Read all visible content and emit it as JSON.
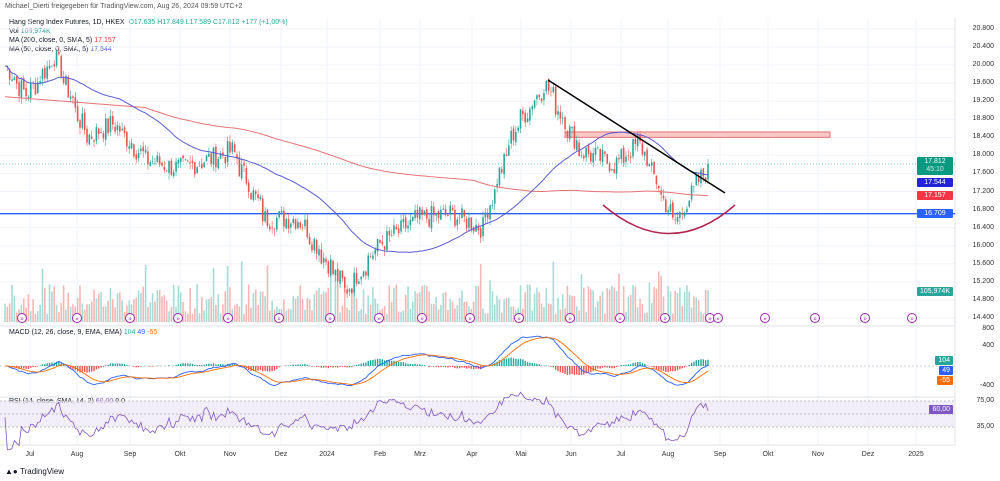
{
  "header": {
    "shared_by": "Michael_Dierti freigegeben für TradingView.com, Aug 26, 2024 09:59 UTC+2"
  },
  "legend": {
    "symbol": "Hang Seng Index Futures, 1D, HKEX",
    "open": "O17.635",
    "high": "H17.849",
    "low": "L17.589",
    "close": "C17.812",
    "change": "+177 (+1,00%)",
    "vol_label": "Vol",
    "vol_value": "105,974K",
    "ma200_label": "MA (200, close, 0, SMA, 5)",
    "ma200_value": "17.157",
    "ma50_label": "MA (50, close, 0, SMA, 5)",
    "ma50_value": "17.544",
    "macd_label": "MACD (12, 26, close, 9, EMA, EMA)",
    "macd_hist": "104",
    "macd_line": "49",
    "macd_signal": "-55",
    "rsi_label": "RSI (14, close, SMA, 14, 2)",
    "rsi_value": "60,00",
    "rsi_extra": "0  0"
  },
  "price_labels": {
    "last": "17.812",
    "countdown": "45:10",
    "ma50": "17.544",
    "ma200": "17.157",
    "hline": "16.709",
    "volume": "105,974K",
    "macd_hist": "104",
    "macd_line": "49",
    "macd_signal": "-55",
    "rsi": "60,00"
  },
  "colors": {
    "up": "#26a69a",
    "down": "#ef5350",
    "ma200": "#e57373",
    "ma50": "#5b5bd6",
    "hline": "#2962ff",
    "trend": "#000000",
    "arc": "#b0264f",
    "zone": "#f8c8c8",
    "rsi": "#7e57c2"
  },
  "footer": {
    "brand": "TradingView"
  },
  "chart_data": {
    "type": "candlestick",
    "price_axis": [
      "20.800",
      "20.400",
      "20.000",
      "19.600",
      "19.200",
      "18.800",
      "18.400",
      "18.000",
      "17.600",
      "17.200",
      "16.800",
      "16.400",
      "16.000",
      "15.600",
      "15.200",
      "14.800",
      "14.400"
    ],
    "macd_axis": [
      "800",
      "400",
      "-400"
    ],
    "rsi_axis": [
      "75,00",
      "35,00"
    ],
    "time_axis": [
      "Jul",
      "Aug",
      "Sep",
      "Okt",
      "Nov",
      "Dez",
      "2024",
      "Feb",
      "Mrz",
      "Apr",
      "Mai",
      "Jun",
      "Jul",
      "Aug",
      "Sep",
      "Okt",
      "Nov",
      "Dez",
      "2025"
    ],
    "ylim": [
      14.4,
      20.8
    ],
    "approx_close_path": [
      [
        "2023-07-01",
        20.1
      ],
      [
        "2023-07-15",
        19.3
      ],
      [
        "2023-08-01",
        20.2
      ],
      [
        "2023-08-20",
        18.4
      ],
      [
        "2023-09-05",
        18.7
      ],
      [
        "2023-09-25",
        17.9
      ],
      [
        "2023-10-15",
        17.7
      ],
      [
        "2023-11-15",
        18.1
      ],
      [
        "2023-12-05",
        16.6
      ],
      [
        "2023-12-25",
        16.6
      ],
      [
        "2024-01-22",
        15.0
      ],
      [
        "2024-02-10",
        16.0
      ],
      [
        "2024-03-05",
        16.6
      ],
      [
        "2024-03-25",
        16.7
      ],
      [
        "2024-04-12",
        16.4
      ],
      [
        "2024-05-02",
        18.6
      ],
      [
        "2024-05-20",
        19.6
      ],
      [
        "2024-06-10",
        18.1
      ],
      [
        "2024-07-01",
        17.8
      ],
      [
        "2024-07-15",
        18.3
      ],
      [
        "2024-08-05",
        16.5
      ],
      [
        "2024-08-26",
        17.812
      ]
    ],
    "horizontal_line": 16.709,
    "resistance_zone": [
      18.4,
      18.52
    ]
  }
}
